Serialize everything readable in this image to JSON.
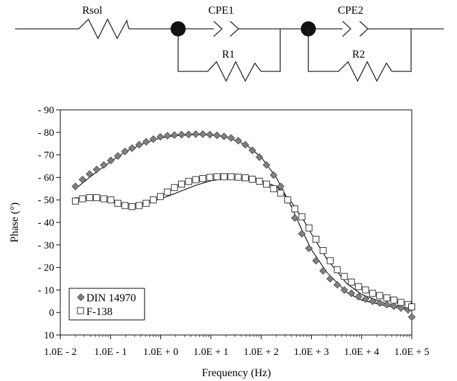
{
  "circuit": {
    "labels": {
      "rsol": "Rsol",
      "cpe1": "CPE1",
      "r1": "R1",
      "cpe2": "CPE2",
      "r2": "R2"
    }
  },
  "chart_data": {
    "type": "scatter",
    "xlabel": "Frequency (Hz)",
    "ylabel": "Phase (°)",
    "x_scale": "log",
    "xlim": [
      0.01,
      100000
    ],
    "ylim": [
      -90,
      10
    ],
    "y_inverted": true,
    "grid": false,
    "legend_position": "bottom-left",
    "x_tick_labels": [
      "1.0E - 2",
      "1.0E - 1",
      "1.0E + 0",
      "1.0E + 1",
      "1.0E + 2",
      "1.0E + 3",
      "1.0E + 4",
      "1.0E + 5"
    ],
    "x_tick_values": [
      0.01,
      0.1,
      1,
      10,
      100,
      1000,
      10000,
      100000
    ],
    "y_tick_labels": [
      "- 90",
      "- 80",
      "- 70",
      "- 60",
      "- 50",
      "- 40",
      "- 30",
      "- 20",
      "- 10",
      "0",
      "10"
    ],
    "y_tick_values": [
      -90,
      -80,
      -70,
      -60,
      -50,
      -40,
      -30,
      -20,
      -10,
      0,
      10
    ],
    "series": [
      {
        "name": "DIN 14970",
        "marker": "diamond",
        "color": "#808080",
        "x": [
          0.02,
          0.0277,
          0.0383,
          0.053,
          0.0733,
          0.1014,
          0.1403,
          0.1942,
          0.2686,
          0.3716,
          0.514,
          0.711,
          0.983,
          1.36,
          1.88,
          2.6,
          3.6,
          4.98,
          6.89,
          9.53,
          13.18,
          18.23,
          25.22,
          34.89,
          48.3,
          66.8,
          92.4,
          127.8,
          176.8,
          244.6,
          338.4,
          468.1,
          647.6,
          895.8,
          1239,
          1714,
          2371,
          3281,
          4538,
          6278,
          8685,
          12015,
          16622,
          22995,
          31810,
          44005,
          60876,
          84215,
          100000
        ],
        "y": [
          -56,
          -59,
          -61.5,
          -63.5,
          -65.5,
          -67.5,
          -69.5,
          -71.5,
          -73,
          -74.5,
          -75.8,
          -77,
          -78,
          -78.5,
          -78.8,
          -79,
          -79.1,
          -79.2,
          -79.2,
          -79,
          -78.7,
          -78.2,
          -77.5,
          -76.3,
          -74.5,
          -72,
          -69,
          -65.5,
          -61,
          -56,
          -50,
          -42,
          -35,
          -28.5,
          -23,
          -18.5,
          -15,
          -12.3,
          -10,
          -8.5,
          -7,
          -6,
          -5,
          -4.2,
          -3.5,
          -2.8,
          -2,
          -1.2,
          2
        ]
      },
      {
        "name": "F-138",
        "marker": "square",
        "color": "#ffffff",
        "x": [
          0.02,
          0.0277,
          0.0383,
          0.053,
          0.0733,
          0.1014,
          0.1403,
          0.1942,
          0.2686,
          0.3716,
          0.514,
          0.711,
          0.983,
          1.36,
          1.88,
          2.6,
          3.6,
          4.98,
          6.89,
          9.53,
          13.18,
          18.23,
          25.22,
          34.89,
          48.3,
          66.8,
          92.4,
          127.8,
          176.8,
          244.6,
          338.4,
          468.1,
          647.6,
          895.8,
          1239,
          1714,
          2371,
          3281,
          4538,
          6278,
          8685,
          12015,
          16622,
          22995,
          31810,
          44005,
          60876,
          84215,
          100000
        ],
        "y": [
          -49.5,
          -50.5,
          -51,
          -51,
          -50.5,
          -50,
          -48.5,
          -47.5,
          -47,
          -47.5,
          -48.5,
          -50,
          -51.5,
          -53.5,
          -55.5,
          -57,
          -58.2,
          -59,
          -59.5,
          -60,
          -60.3,
          -60.3,
          -60.3,
          -60.1,
          -59.8,
          -59.2,
          -58.3,
          -57,
          -55,
          -53,
          -50,
          -46,
          -42.5,
          -37.5,
          -32.5,
          -27.5,
          -23,
          -19,
          -16,
          -13.5,
          -11.5,
          -10,
          -8.5,
          -7.5,
          -6.5,
          -5.5,
          -4.5,
          -3.5,
          -2.5
        ]
      },
      {
        "name": "",
        "kind": "fit",
        "x": [
          0.02,
          0.05,
          0.1,
          0.2,
          0.5,
          1,
          2,
          5,
          10,
          20,
          50,
          100,
          200,
          400,
          700,
          1000,
          2000,
          5000,
          10000,
          30000,
          100000
        ],
        "y": [
          -55,
          -62,
          -67,
          -71.5,
          -75.5,
          -77.5,
          -78.5,
          -79,
          -78.8,
          -78,
          -74.5,
          -69,
          -60,
          -47,
          -35,
          -28,
          -18,
          -9,
          -5.5,
          -3,
          -1
        ]
      },
      {
        "name": "",
        "kind": "fit",
        "x": [
          0.02,
          0.05,
          0.1,
          0.2,
          0.5,
          1,
          2,
          5,
          10,
          20,
          50,
          100,
          200,
          400,
          700,
          1000,
          2000,
          5000,
          10000,
          30000,
          100000
        ],
        "y": [
          -51,
          -50.5,
          -49,
          -48,
          -48.5,
          -50.5,
          -53,
          -56.5,
          -58.5,
          -59.5,
          -59.5,
          -58.5,
          -56,
          -49,
          -41,
          -35,
          -24,
          -13,
          -8,
          -4,
          -1.5
        ]
      }
    ]
  }
}
